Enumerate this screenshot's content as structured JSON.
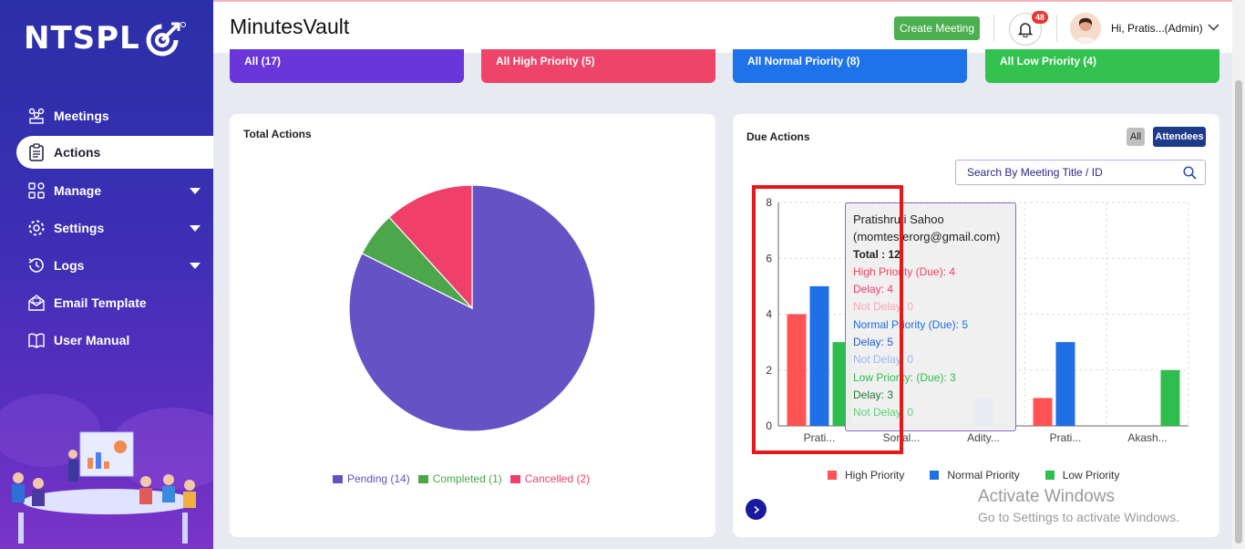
{
  "sidebar": {
    "logo": "NTSPL",
    "items": [
      {
        "label": "Meetings",
        "icon": "meetings-icon",
        "active": false,
        "caret": false
      },
      {
        "label": "Actions",
        "icon": "clipboard-icon",
        "active": true,
        "caret": false
      },
      {
        "label": "Manage",
        "icon": "grid-icon",
        "active": false,
        "caret": true
      },
      {
        "label": "Settings",
        "icon": "gear-icon",
        "active": false,
        "caret": true
      },
      {
        "label": "Logs",
        "icon": "history-icon",
        "active": false,
        "caret": true
      },
      {
        "label": "Email Template",
        "icon": "email-icon",
        "active": false,
        "caret": false
      },
      {
        "label": "User Manual",
        "icon": "book-icon",
        "active": false,
        "caret": false
      }
    ]
  },
  "header": {
    "title": "MinutesVault",
    "create_button": "Create Meeting",
    "notification_count": "48",
    "user_name": "Hi, Pratis...(Admin)"
  },
  "priority_cards": {
    "all": "All (17)",
    "high": "All High Priority (5)",
    "normal": "All Normal Priority (8)",
    "low": "All Low Priority (4)"
  },
  "total_actions": {
    "title": "Total Actions",
    "legend": [
      {
        "label": "Pending (14)",
        "color": "#6552c4"
      },
      {
        "label": "Completed (1)",
        "color": "#4ca64c"
      },
      {
        "label": "Cancelled (2)",
        "color": "#f0406a"
      }
    ]
  },
  "due_actions": {
    "title": "Due Actions",
    "filter_all": "All",
    "filter_attendees": "Attendees",
    "search_placeholder": "Search By Meeting Title / ID",
    "legend": [
      {
        "label": "High Priority",
        "color": "#ff5252"
      },
      {
        "label": "Normal Priority",
        "color": "#1f6fe5"
      },
      {
        "label": "Low Priority",
        "color": "#2fbd4f"
      }
    ],
    "tooltip": {
      "name": "Pratishruti Sahoo",
      "email": "(momtesterorg@gmail.com)",
      "total": "Total : 12",
      "lines": [
        {
          "text": "High Priority (Due): 4",
          "color": "#f0406a"
        },
        {
          "text": "Delay: 4",
          "color": "#f0406a"
        },
        {
          "text": "Not Delay: 0",
          "color": "#f7a8b8"
        },
        {
          "text": "Normal Priority (Due): 5",
          "color": "#1f6fe5"
        },
        {
          "text": "Delay: 5",
          "color": "#1f5fd0"
        },
        {
          "text": "Not Delay: 0",
          "color": "#9ab8f0"
        },
        {
          "text": "Low Priority: (Due): 3",
          "color": "#2fbd4f"
        },
        {
          "text": "Delay: 3",
          "color": "#1e7a32"
        },
        {
          "text": "Not Delay: 0",
          "color": "#5fd07a"
        }
      ]
    }
  },
  "chart_data": [
    {
      "type": "pie",
      "labels": [
        "Pending",
        "Completed",
        "Cancelled"
      ],
      "values": [
        14,
        1,
        2
      ],
      "colors": [
        "#6552c4",
        "#4ca64c",
        "#f0406a"
      ],
      "legend": "bottom"
    },
    {
      "type": "bar",
      "categories": [
        "Prati...",
        "Sonal...",
        "Adity...",
        "Prati...",
        "Akash..."
      ],
      "series": [
        {
          "name": "High Priority",
          "values": [
            4,
            0,
            0,
            1,
            0
          ],
          "color": "#ff5252"
        },
        {
          "name": "Normal Priority",
          "values": [
            5,
            0,
            1,
            3,
            0
          ],
          "color": "#1f6fe5"
        },
        {
          "name": "Low Priority",
          "values": [
            3,
            0,
            0,
            0,
            2
          ],
          "color": "#2fbd4f"
        }
      ],
      "ylim": [
        0,
        8
      ],
      "yticks": [
        0,
        2,
        4,
        6,
        8
      ],
      "grid": true,
      "legend": "bottom"
    }
  ],
  "watermark": {
    "line1": "Activate Windows",
    "line2": "Go to Settings to activate Windows."
  }
}
